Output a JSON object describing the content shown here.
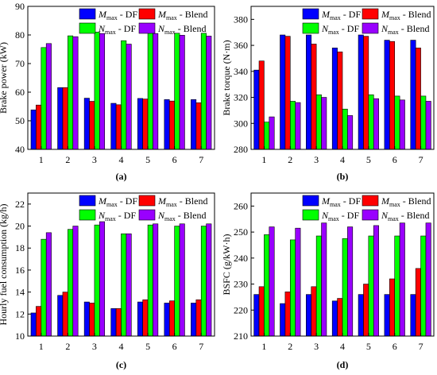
{
  "series_colors": [
    "#0000ff",
    "#ff0000",
    "#00ff00",
    "#9900ff"
  ],
  "chart_data": [
    {
      "type": "bar",
      "panel_label": "(a)",
      "ylabel": "Brake power (kW)",
      "xlabel": "",
      "categories": [
        "1",
        "2",
        "3",
        "4",
        "5",
        "6",
        "7"
      ],
      "ylim": [
        40,
        90
      ],
      "yticks": [
        "40",
        "50",
        "60",
        "70",
        "80",
        "90"
      ],
      "legend_placement": "top-right",
      "series": [
        {
          "name": "Mmax - DF",
          "label_main": "M",
          "label_sub": "max",
          "label_rest": " - DF",
          "values": [
            53.8,
            61.6,
            57.9,
            56.1,
            57.8,
            57.4,
            57.4
          ]
        },
        {
          "name": "Mmax - Blend",
          "label_main": "M",
          "label_sub": "max",
          "label_rest": " - Blend",
          "values": [
            55.5,
            61.6,
            56.8,
            55.6,
            57.6,
            56.9,
            56.3
          ]
        },
        {
          "name": "Nmax - DF",
          "label_main": "N",
          "label_sub": "max",
          "label_rest": " - DF",
          "values": [
            75.6,
            79.7,
            81.0,
            78.0,
            80.9,
            80.6,
            80.6
          ]
        },
        {
          "name": "Nmax - Blend",
          "label_main": "N",
          "label_sub": "max",
          "label_rest": " - Blend",
          "values": [
            77.0,
            79.4,
            80.5,
            76.8,
            80.5,
            79.9,
            79.6
          ]
        }
      ]
    },
    {
      "type": "bar",
      "panel_label": "(b)",
      "ylabel": "Brake torque (N·m)",
      "xlabel": "",
      "categories": [
        "1",
        "2",
        "3",
        "4",
        "5",
        "6",
        "7"
      ],
      "ylim": [
        280,
        390
      ],
      "yticks": [
        "280",
        "300",
        "320",
        "340",
        "360",
        "380"
      ],
      "legend_placement": "top-right",
      "series": [
        {
          "name": "Mmax - DF",
          "label_main": "M",
          "label_sub": "max",
          "label_rest": " - DF",
          "values": [
            341,
            368,
            368,
            358,
            368,
            364,
            364
          ]
        },
        {
          "name": "Mmax - Blend",
          "label_main": "M",
          "label_sub": "max",
          "label_rest": " - Blend",
          "values": [
            348,
            367,
            361,
            355,
            367,
            363,
            358
          ]
        },
        {
          "name": "Nmax - DF",
          "label_main": "N",
          "label_sub": "max",
          "label_rest": " - DF",
          "values": [
            301,
            317,
            322,
            311,
            322,
            321,
            321
          ]
        },
        {
          "name": "Nmax - Blend",
          "label_main": "N",
          "label_sub": "max",
          "label_rest": " - Blend",
          "values": [
            305,
            316,
            320,
            306,
            319,
            318,
            317
          ]
        }
      ]
    },
    {
      "type": "bar",
      "panel_label": "(c)",
      "ylabel": "Hourly fuel consumption (kg/h)",
      "xlabel": "",
      "categories": [
        "1",
        "2",
        "3",
        "4",
        "5",
        "6",
        "7"
      ],
      "ylim": [
        10,
        23
      ],
      "yticks": [
        "10",
        "12",
        "14",
        "16",
        "18",
        "20",
        "22"
      ],
      "legend_placement": "top-right",
      "series": [
        {
          "name": "Mmax - DF",
          "label_main": "M",
          "label_sub": "max",
          "label_rest": " - DF",
          "values": [
            12.1,
            13.7,
            13.1,
            12.5,
            13.1,
            13.0,
            13.0
          ]
        },
        {
          "name": "Mmax - Blend",
          "label_main": "M",
          "label_sub": "max",
          "label_rest": " - Blend",
          "values": [
            12.7,
            14.0,
            13.0,
            12.5,
            13.3,
            13.2,
            13.3
          ]
        },
        {
          "name": "Nmax - DF",
          "label_main": "N",
          "label_sub": "max",
          "label_rest": " - DF",
          "values": [
            18.8,
            19.7,
            20.1,
            19.3,
            20.1,
            20.0,
            20.0
          ]
        },
        {
          "name": "Nmax - Blend",
          "label_main": "N",
          "label_sub": "max",
          "label_rest": " - Blend",
          "values": [
            19.4,
            20.0,
            20.4,
            19.3,
            20.2,
            20.2,
            20.2
          ]
        }
      ]
    },
    {
      "type": "bar",
      "panel_label": "(d)",
      "ylabel": "BSFC (g/kW·h)",
      "xlabel": "",
      "categories": [
        "1",
        "2",
        "3",
        "4",
        "5",
        "6",
        "7"
      ],
      "ylim": [
        210,
        265
      ],
      "yticks": [
        "210",
        "220",
        "230",
        "240",
        "250",
        "260"
      ],
      "legend_placement": "top-right",
      "series": [
        {
          "name": "Mmax - DF",
          "label_main": "M",
          "label_sub": "max",
          "label_rest": " - DF",
          "values": [
            226,
            222.5,
            226,
            223.5,
            226,
            226,
            226
          ]
        },
        {
          "name": "Mmax - Blend",
          "label_main": "M",
          "label_sub": "max",
          "label_rest": " - Blend",
          "values": [
            229,
            227,
            229,
            224.5,
            230,
            232,
            236
          ]
        },
        {
          "name": "Nmax - DF",
          "label_main": "N",
          "label_sub": "max",
          "label_rest": " - DF",
          "values": [
            249,
            247,
            248.5,
            247.5,
            248.5,
            248.5,
            248.5
          ]
        },
        {
          "name": "Nmax - Blend",
          "label_main": "N",
          "label_sub": "max",
          "label_rest": " - Blend",
          "values": [
            252,
            251.5,
            253.5,
            252,
            252.5,
            253.5,
            253.5
          ]
        }
      ]
    }
  ]
}
